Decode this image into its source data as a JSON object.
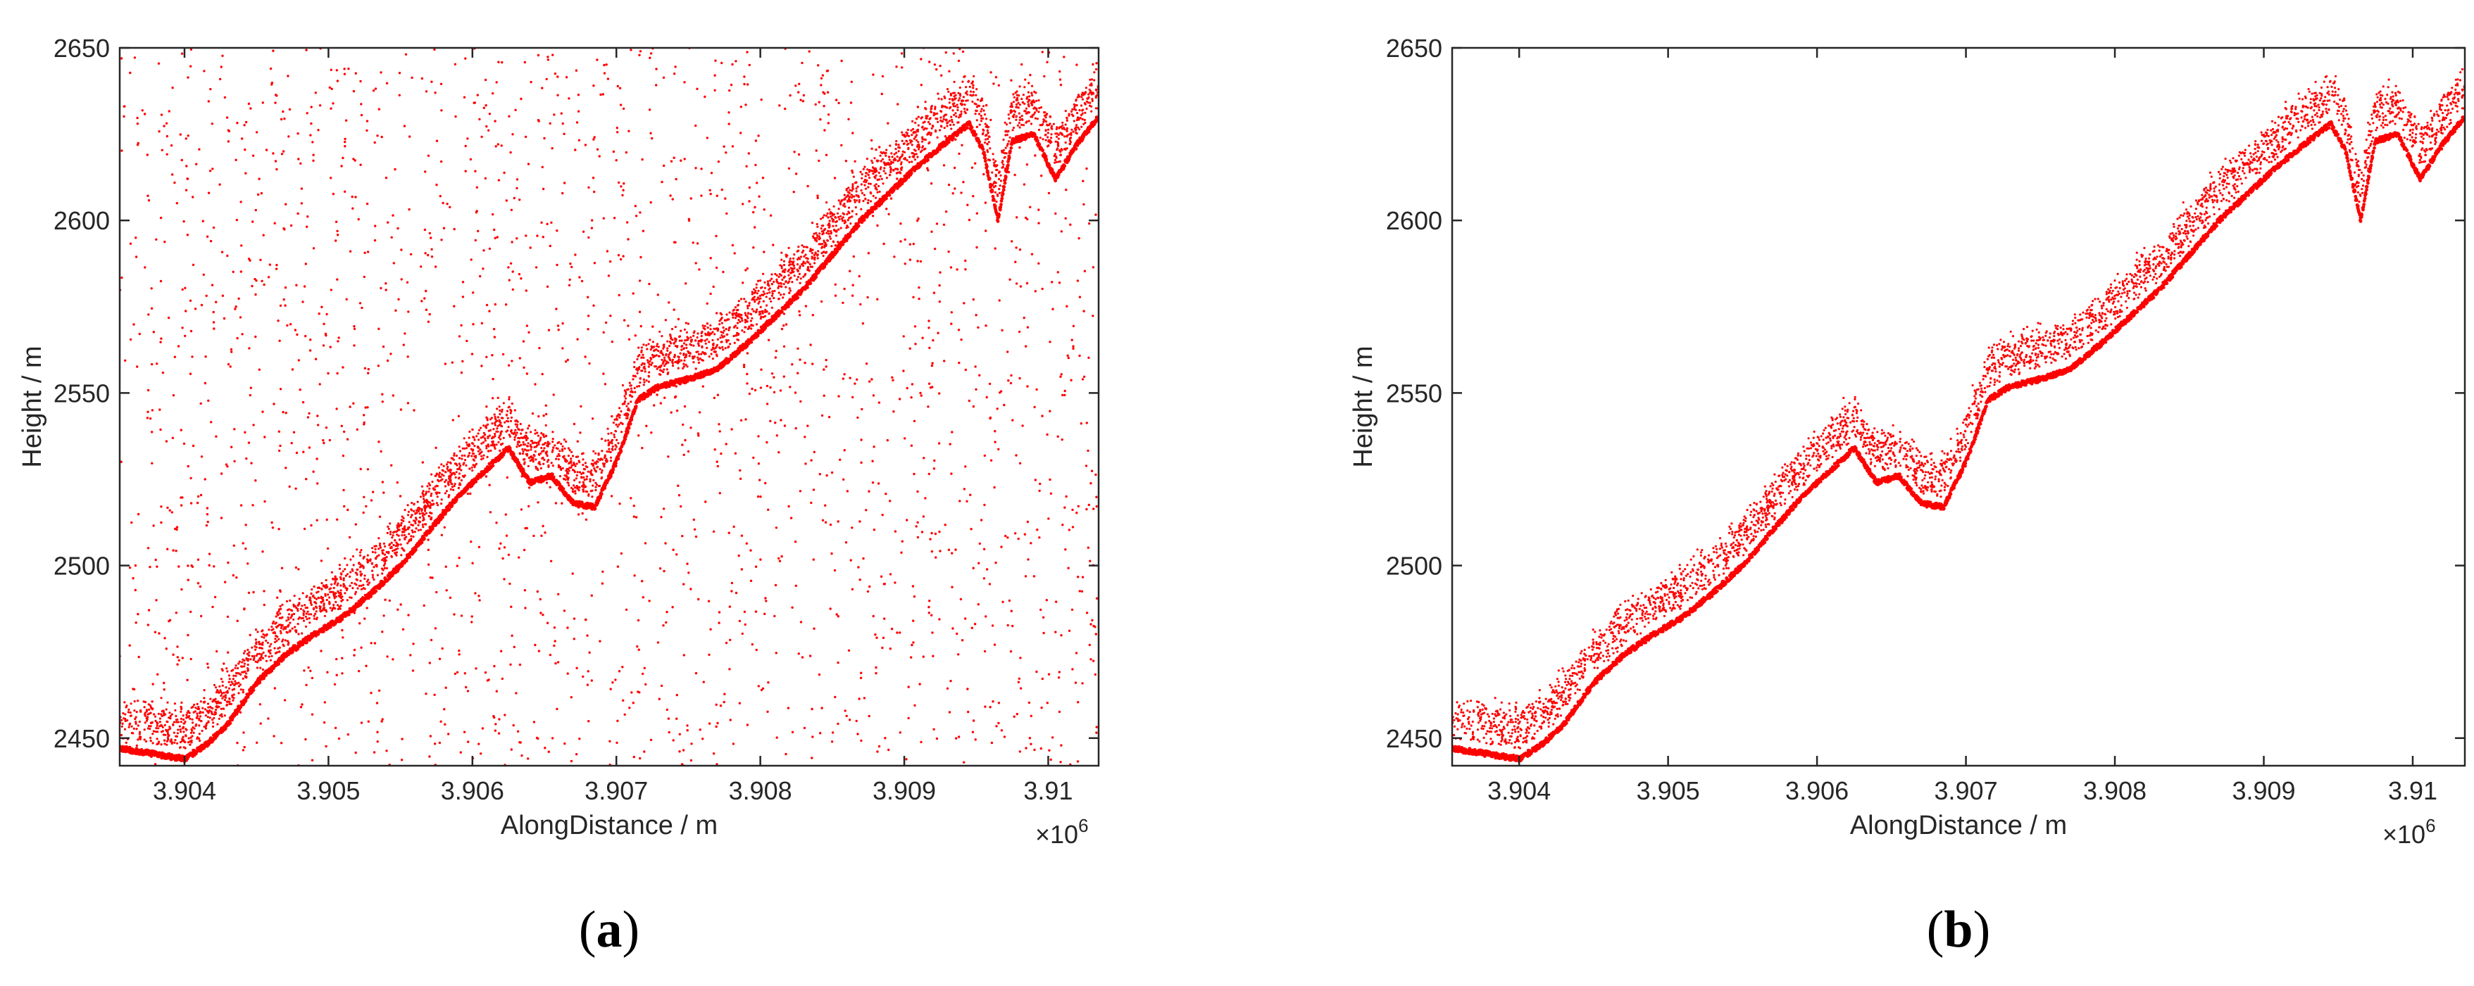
{
  "chart_data": [
    {
      "panel": "a",
      "type": "scatter",
      "caption": {
        "open": "(",
        "letter": "a",
        "close": ")"
      },
      "xlabel": "AlongDistance / m",
      "ylabel": "Height / m",
      "x_exponent": {
        "base": "×10",
        "power": "6"
      },
      "xlim": [
        3.90355,
        3.91035
      ],
      "ylim": [
        2442,
        2650
      ],
      "x_ticks": [
        3.904,
        3.905,
        3.906,
        3.907,
        3.908,
        3.909,
        3.91
      ],
      "x_tick_labels": [
        "3.904",
        "3.905",
        "3.906",
        "3.907",
        "3.908",
        "3.909",
        "3.91"
      ],
      "y_ticks": [
        2450,
        2500,
        2550,
        2600,
        2650
      ],
      "y_tick_labels": [
        "2450",
        "2500",
        "2550",
        "2600",
        "2650"
      ],
      "grid": false,
      "color": "#ff0000",
      "has_background_noise": true,
      "ground_profile": {
        "x": [
          3.90355,
          3.9037,
          3.90385,
          3.904,
          3.90415,
          3.9043,
          3.9045,
          3.9047,
          3.9049,
          3.9051,
          3.9053,
          3.9055,
          3.9057,
          3.9059,
          3.9061,
          3.90625,
          3.9064,
          3.90655,
          3.9067,
          3.90685,
          3.907,
          3.90715,
          3.9073,
          3.9075,
          3.9077,
          3.9079,
          3.9081,
          3.9083,
          3.9085,
          3.9087,
          3.9089,
          3.9091,
          3.9093,
          3.90945,
          3.90955,
          3.90965,
          3.90975,
          3.9099,
          3.91005,
          3.9102,
          3.91035
        ],
        "y": [
          2447,
          2446,
          2445,
          2444,
          2448,
          2454,
          2466,
          2474,
          2480,
          2485,
          2492,
          2500,
          2510,
          2520,
          2528,
          2534,
          2524,
          2526,
          2518,
          2517,
          2530,
          2548,
          2552,
          2554,
          2557,
          2564,
          2572,
          2580,
          2590,
          2600,
          2608,
          2616,
          2623,
          2628,
          2620,
          2600,
          2623,
          2625,
          2612,
          2622,
          2630
        ]
      },
      "canopy_offset": 8,
      "canopy_spread": 10
    },
    {
      "panel": "b",
      "type": "scatter",
      "caption": {
        "open": "(",
        "letter": "b",
        "close": ")"
      },
      "xlabel": "AlongDistance / m",
      "ylabel": "Height / m",
      "x_exponent": {
        "base": "×10",
        "power": "6"
      },
      "xlim": [
        3.90355,
        3.91035
      ],
      "ylim": [
        2442,
        2650
      ],
      "x_ticks": [
        3.904,
        3.905,
        3.906,
        3.907,
        3.908,
        3.909,
        3.91
      ],
      "x_tick_labels": [
        "3.904",
        "3.905",
        "3.906",
        "3.907",
        "3.908",
        "3.909",
        "3.91"
      ],
      "y_ticks": [
        2450,
        2500,
        2550,
        2600,
        2650
      ],
      "y_tick_labels": [
        "2450",
        "2500",
        "2550",
        "2600",
        "2650"
      ],
      "grid": false,
      "color": "#ff0000",
      "has_background_noise": false,
      "ground_profile": {
        "x": [
          3.90355,
          3.9037,
          3.90385,
          3.904,
          3.90415,
          3.9043,
          3.9045,
          3.9047,
          3.9049,
          3.9051,
          3.9053,
          3.9055,
          3.9057,
          3.9059,
          3.9061,
          3.90625,
          3.9064,
          3.90655,
          3.9067,
          3.90685,
          3.907,
          3.90715,
          3.9073,
          3.9075,
          3.9077,
          3.9079,
          3.9081,
          3.9083,
          3.9085,
          3.9087,
          3.9089,
          3.9091,
          3.9093,
          3.90945,
          3.90955,
          3.90965,
          3.90975,
          3.9099,
          3.91005,
          3.9102,
          3.91035
        ],
        "y": [
          2447,
          2446,
          2445,
          2444,
          2448,
          2454,
          2466,
          2474,
          2480,
          2485,
          2492,
          2500,
          2510,
          2520,
          2528,
          2534,
          2524,
          2526,
          2518,
          2517,
          2530,
          2548,
          2552,
          2554,
          2557,
          2564,
          2572,
          2580,
          2590,
          2600,
          2608,
          2616,
          2623,
          2628,
          2620,
          2600,
          2623,
          2625,
          2612,
          2622,
          2630
        ]
      },
      "canopy_offset": 8,
      "canopy_spread": 10
    }
  ]
}
